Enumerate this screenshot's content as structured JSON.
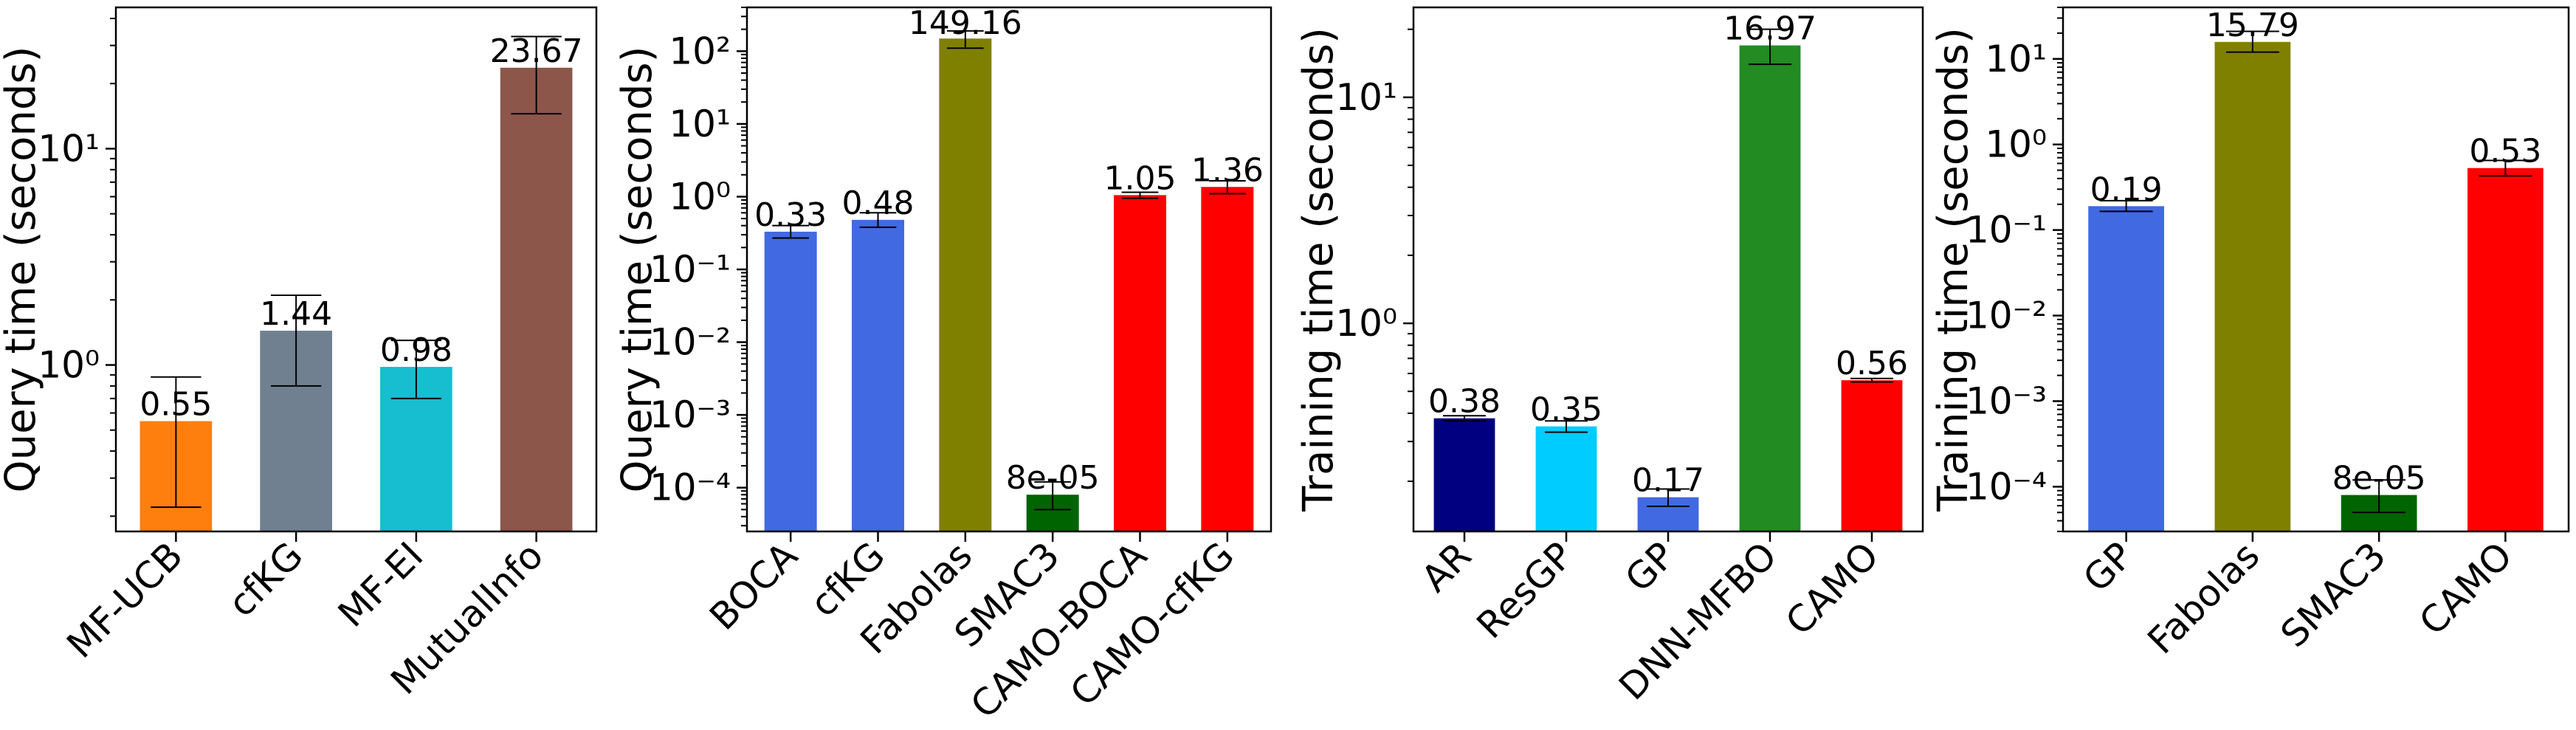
{
  "chart_data": [
    {
      "type": "bar",
      "ylabel": "Query time (seconds)",
      "yscale": "log",
      "ylim": [
        0.17,
        45
      ],
      "yticks": [
        {
          "v": 1,
          "label": "10⁰"
        },
        {
          "v": 10,
          "label": "10¹"
        }
      ],
      "categories": [
        "MF-UCB",
        "cfKG",
        "MF-EI",
        "MutualInfo"
      ],
      "values": [
        0.55,
        1.44,
        0.98,
        23.67
      ],
      "value_labels": [
        "0.55",
        "1.44",
        "0.98",
        "23.67"
      ],
      "error_low": [
        0.22,
        0.8,
        0.7,
        14.5
      ],
      "error_high": [
        0.88,
        2.1,
        1.3,
        33
      ],
      "colors": [
        "#ff7f0e",
        "#708090",
        "#17becf",
        "#8c564b"
      ]
    },
    {
      "type": "bar",
      "ylabel": "Query time (seconds)",
      "yscale": "log",
      "ylim": [
        2.5e-05,
        400
      ],
      "yticks": [
        {
          "v": 0.0001,
          "label": "10⁻⁴"
        },
        {
          "v": 0.001,
          "label": "10⁻³"
        },
        {
          "v": 0.01,
          "label": "10⁻²"
        },
        {
          "v": 0.1,
          "label": "10⁻¹"
        },
        {
          "v": 1,
          "label": "10⁰"
        },
        {
          "v": 10,
          "label": "10¹"
        },
        {
          "v": 100,
          "label": "10²"
        }
      ],
      "categories": [
        "BOCA",
        "cfKG",
        "Fabolas",
        "SMAC3",
        "CAMO-BOCA",
        "CAMO-cfKG"
      ],
      "values": [
        0.33,
        0.48,
        149.16,
        8e-05,
        1.05,
        1.36
      ],
      "value_labels": [
        "0.33",
        "0.48",
        "149.16",
        "8e-05",
        "1.05",
        "1.36"
      ],
      "error_low": [
        0.27,
        0.38,
        110,
        5e-05,
        0.95,
        1.1
      ],
      "error_high": [
        0.4,
        0.6,
        190,
        0.00012,
        1.15,
        1.65
      ],
      "colors": [
        "#4169e1",
        "#4169e1",
        "#808000",
        "#006400",
        "#ff0000",
        "#ff0000"
      ]
    },
    {
      "type": "bar",
      "ylabel": "Training time (seconds)",
      "yscale": "log",
      "ylim": [
        0.12,
        25
      ],
      "yticks": [
        {
          "v": 1,
          "label": "10⁰"
        },
        {
          "v": 10,
          "label": "10¹"
        }
      ],
      "categories": [
        "AR",
        "ResGP",
        "GP",
        "DNN-MFBO",
        "CAMO"
      ],
      "values": [
        0.38,
        0.35,
        0.17,
        16.97,
        0.56
      ],
      "value_labels": [
        "0.38",
        "0.35",
        "0.17",
        "16.97",
        "0.56"
      ],
      "error_low": [
        0.37,
        0.33,
        0.155,
        14,
        0.55
      ],
      "error_high": [
        0.39,
        0.37,
        0.185,
        20,
        0.57
      ],
      "colors": [
        "#000080",
        "#00ccff",
        "#4169e1",
        "#228b22",
        "#ff0000"
      ]
    },
    {
      "type": "bar",
      "ylabel": "Training time (seconds)",
      "yscale": "log",
      "ylim": [
        3e-05,
        40
      ],
      "yticks": [
        {
          "v": 0.0001,
          "label": "10⁻⁴"
        },
        {
          "v": 0.001,
          "label": "10⁻³"
        },
        {
          "v": 0.01,
          "label": "10⁻²"
        },
        {
          "v": 0.1,
          "label": "10⁻¹"
        },
        {
          "v": 1,
          "label": "10⁰"
        },
        {
          "v": 10,
          "label": "10¹"
        }
      ],
      "categories": [
        "GP",
        "Fabolas",
        "SMAC3",
        "CAMO"
      ],
      "values": [
        0.19,
        15.79,
        8e-05,
        0.53
      ],
      "value_labels": [
        "0.19",
        "15.79",
        "8e-05",
        "0.53"
      ],
      "error_low": [
        0.165,
        12,
        5e-05,
        0.43
      ],
      "error_high": [
        0.22,
        21,
        0.00012,
        0.65
      ],
      "colors": [
        "#4169e1",
        "#808000",
        "#006400",
        "#ff0000"
      ]
    }
  ]
}
